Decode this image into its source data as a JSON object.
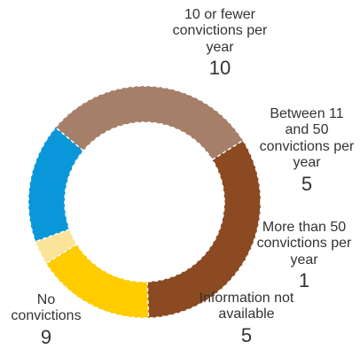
{
  "chart_data": {
    "type": "pie",
    "donut": true,
    "title": "",
    "series": [
      {
        "label": "10 or fewer convictions per year",
        "value": 10,
        "color": "#8B4A22"
      },
      {
        "label": "Between 11 and 50 convictions per year",
        "value": 5,
        "color": "#FFCC00"
      },
      {
        "label": "More than 50 convictions per year",
        "value": 1,
        "color": "#FBE39A"
      },
      {
        "label": "Information not available",
        "value": 5,
        "color": "#0A97D9"
      },
      {
        "label": "No convictions",
        "value": 9,
        "color": "#A57F68"
      }
    ],
    "start_angle_deg": 58,
    "direction": "clockwise",
    "slice_border": "dashed white",
    "legend": "none"
  },
  "labels": [
    {
      "name": "10 or fewer convictions per year",
      "value": "10"
    },
    {
      "name": "Between 11 and 50 convictions per year",
      "value": "5"
    },
    {
      "name": "More than 50 convictions per year",
      "value": "1"
    },
    {
      "name": "Information not available",
      "value": "5"
    },
    {
      "name": "No convictions",
      "value": "9"
    }
  ]
}
